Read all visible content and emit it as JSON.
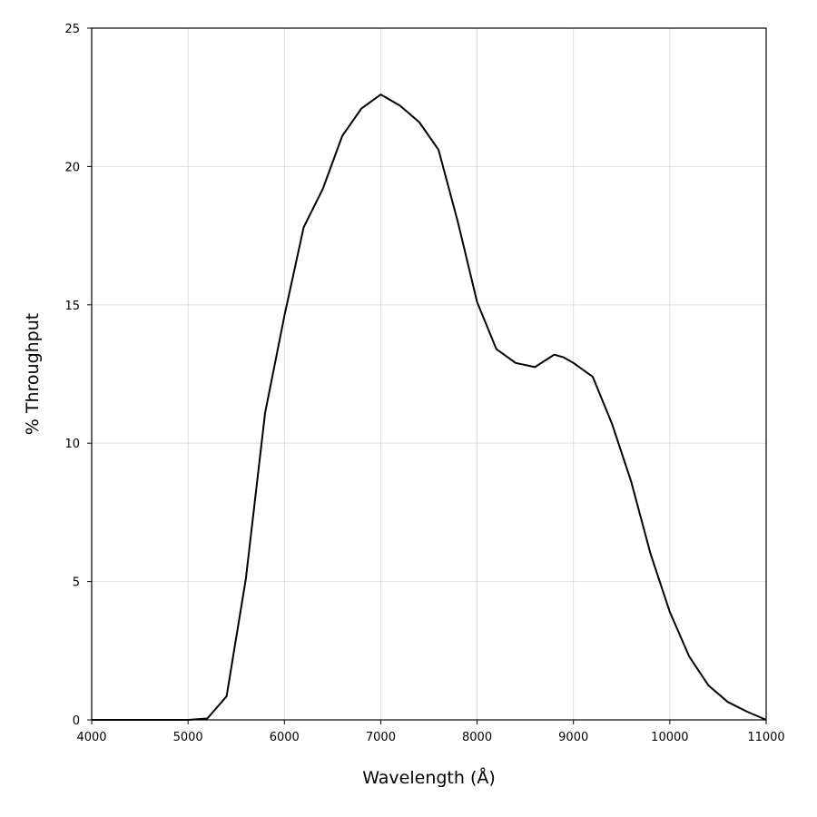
{
  "chart_data": {
    "type": "line",
    "title": "",
    "xlabel": "Wavelength (Å)",
    "ylabel": "% Throughput",
    "xlim": [
      4000,
      11000
    ],
    "ylim": [
      0,
      25
    ],
    "xticks": [
      4000,
      5000,
      6000,
      7000,
      8000,
      9000,
      10000,
      11000
    ],
    "yticks": [
      0,
      5,
      10,
      15,
      20,
      25
    ],
    "grid": true,
    "line_color": "#000000",
    "series": [
      {
        "x": [
          4000,
          4500,
          5000,
          5200,
          5400,
          5600,
          5800,
          6000,
          6200,
          6400,
          6600,
          6800,
          7000,
          7200,
          7400,
          7600,
          7800,
          8000,
          8200,
          8400,
          8600,
          8800,
          8900,
          9000,
          9200,
          9400,
          9600,
          9800,
          10000,
          10200,
          10400,
          10600,
          10800,
          11000
        ],
        "y": [
          0.0,
          0.0,
          0.0,
          0.05,
          0.85,
          5.1,
          11.1,
          14.6,
          17.8,
          19.2,
          21.1,
          22.1,
          22.6,
          22.2,
          21.6,
          20.6,
          18.0,
          15.1,
          13.4,
          12.9,
          12.75,
          13.2,
          13.1,
          12.9,
          12.4,
          10.7,
          8.6,
          6.0,
          3.9,
          2.3,
          1.25,
          0.65,
          0.3,
          0.0
        ]
      }
    ]
  }
}
